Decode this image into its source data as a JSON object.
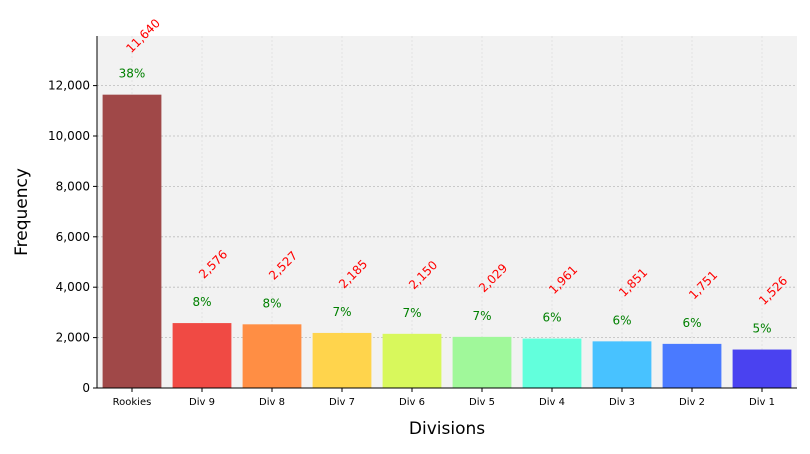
{
  "chart_data": {
    "type": "bar",
    "title": "",
    "xlabel": "Divisions",
    "ylabel": "Frequency",
    "categories": [
      "Rookies",
      "Div 9",
      "Div 8",
      "Div 7",
      "Div 6",
      "Div 5",
      "Div 4",
      "Div 3",
      "Div 2",
      "Div 1"
    ],
    "values": [
      11640,
      2576,
      2527,
      2185,
      2150,
      2029,
      1961,
      1851,
      1751,
      1526
    ],
    "value_labels": [
      "11,640",
      "2,576",
      "2,527",
      "2,185",
      "2,150",
      "2,029",
      "1,961",
      "1,851",
      "1,751",
      "1,526"
    ],
    "percent_labels": [
      "38%",
      "8%",
      "8%",
      "7%",
      "7%",
      "7%",
      "6%",
      "6%",
      "6%",
      "5%"
    ],
    "colors": [
      "#a04848",
      "#f04a44",
      "#ff8e44",
      "#ffd44c",
      "#d8f85c",
      "#a0f89a",
      "#62ffdc",
      "#48c2ff",
      "#4a7aff",
      "#4a42f0"
    ],
    "value_label_color": "#ff0000",
    "percent_label_color": "#008000",
    "yticks": [
      0,
      2000,
      4000,
      6000,
      8000,
      10000,
      12000
    ],
    "ytick_labels": [
      "0",
      "2,000",
      "4,000",
      "6,000",
      "8,000",
      "10,000",
      "12,000"
    ],
    "ylim": [
      0,
      13968
    ],
    "grid": true,
    "background": "#f2f2f2"
  }
}
